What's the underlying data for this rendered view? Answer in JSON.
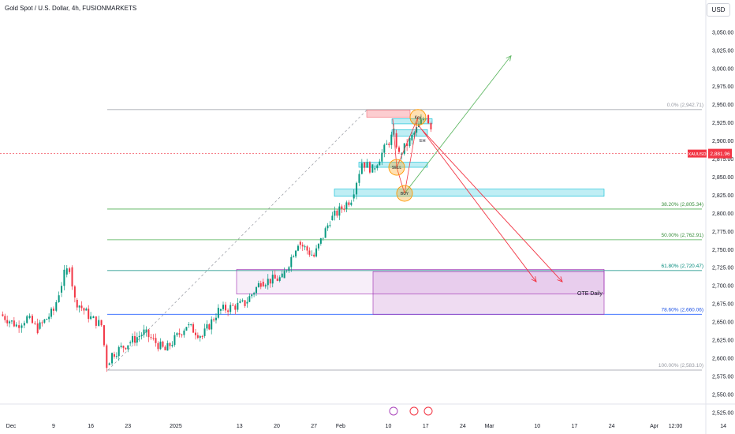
{
  "header": {
    "title": "Gold Spot / U.S. Dollar, 4h, FUSIONMARKETS",
    "currency": "USD"
  },
  "chart_data": {
    "type": "candlestick",
    "symbol": "XAUUSD",
    "timeframe": "4h",
    "last_price": {
      "label": "XAUUSD",
      "value": "2,881.96"
    },
    "y_axis": {
      "min": 2512,
      "max": 3062,
      "ticks": [
        "3,050.00",
        "3,025.00",
        "3,000.00",
        "2,975.00",
        "2,950.00",
        "2,925.00",
        "2,900.00",
        "2,875.00",
        "2,850.00",
        "2,825.00",
        "2,800.00",
        "2,775.00",
        "2,750.00",
        "2,725.00",
        "2,700.00",
        "2,675.00",
        "2,650.00",
        "2,625.00",
        "2,600.00",
        "2,575.00",
        "2,550.00",
        "2,525.00"
      ]
    },
    "x_axis": {
      "ticks": [
        {
          "label": "Dec",
          "date": "2024-12-01"
        },
        {
          "label": "9",
          "date": "2024-12-09"
        },
        {
          "label": "16",
          "date": "2024-12-16"
        },
        {
          "label": "23",
          "date": "2024-12-23"
        },
        {
          "label": "2025",
          "date": "2025-01-01"
        },
        {
          "label": "13",
          "date": "2025-01-13"
        },
        {
          "label": "20",
          "date": "2025-01-20"
        },
        {
          "label": "27",
          "date": "2025-01-27"
        },
        {
          "label": "Feb",
          "date": "2025-02-01"
        },
        {
          "label": "10",
          "date": "2025-02-10"
        },
        {
          "label": "17",
          "date": "2025-02-17"
        },
        {
          "label": "24",
          "date": "2025-02-24"
        },
        {
          "label": "Mar",
          "date": "2025-03-01"
        },
        {
          "label": "10",
          "date": "2025-03-10"
        },
        {
          "label": "17",
          "date": "2025-03-17"
        },
        {
          "label": "24",
          "date": "2025-03-24"
        },
        {
          "label": "Apr",
          "date": "2025-04-01"
        },
        {
          "label": "12:00",
          "date": "2025-04-05"
        },
        {
          "label": "14",
          "date": "2025-04-14"
        }
      ]
    },
    "price_path": [
      {
        "date": "2024-11-29",
        "price": 2660
      },
      {
        "date": "2024-12-02",
        "price": 2645
      },
      {
        "date": "2024-12-04",
        "price": 2655
      },
      {
        "date": "2024-12-06",
        "price": 2640
      },
      {
        "date": "2024-12-09",
        "price": 2665
      },
      {
        "date": "2024-12-10",
        "price": 2690
      },
      {
        "date": "2024-12-11",
        "price": 2715
      },
      {
        "date": "2024-12-12",
        "price": 2725
      },
      {
        "date": "2024-12-13",
        "price": 2680
      },
      {
        "date": "2024-12-16",
        "price": 2655
      },
      {
        "date": "2024-12-18",
        "price": 2645
      },
      {
        "date": "2024-12-19",
        "price": 2590
      },
      {
        "date": "2024-12-20",
        "price": 2605
      },
      {
        "date": "2024-12-23",
        "price": 2620
      },
      {
        "date": "2024-12-26",
        "price": 2635
      },
      {
        "date": "2024-12-30",
        "price": 2610
      },
      {
        "date": "2025-01-03",
        "price": 2645
      },
      {
        "date": "2025-01-06",
        "price": 2630
      },
      {
        "date": "2025-01-09",
        "price": 2665
      },
      {
        "date": "2025-01-14",
        "price": 2675
      },
      {
        "date": "2025-01-17",
        "price": 2705
      },
      {
        "date": "2025-01-21",
        "price": 2710
      },
      {
        "date": "2025-01-24",
        "price": 2760
      },
      {
        "date": "2025-01-27",
        "price": 2740
      },
      {
        "date": "2025-01-30",
        "price": 2790
      },
      {
        "date": "2025-02-03",
        "price": 2820
      },
      {
        "date": "2025-02-05",
        "price": 2870
      },
      {
        "date": "2025-02-07",
        "price": 2860
      },
      {
        "date": "2025-02-11",
        "price": 2910
      },
      {
        "date": "2025-02-12",
        "price": 2880
      },
      {
        "date": "2025-02-14",
        "price": 2900
      },
      {
        "date": "2025-02-17",
        "price": 2935
      },
      {
        "date": "2025-02-18",
        "price": 2920
      }
    ],
    "fibonacci": [
      {
        "label": "0.0% (2,942.71)",
        "value": 2942.71,
        "color": "#9598a1",
        "label_color": "#9598a1"
      },
      {
        "label": "38.20% (2,805.34)",
        "value": 2805.34,
        "color": "#4caf50",
        "label_color": "#388e3c"
      },
      {
        "label": "50.00% (2,762.91)",
        "value": 2762.91,
        "color": "#4caf50",
        "label_color": "#388e3c"
      },
      {
        "label": "61.80% (2,720.47)",
        "value": 2720.47,
        "color": "#00897b",
        "label_color": "#00897b"
      },
      {
        "label": "78.60% (2,660.06)",
        "value": 2660.06,
        "color": "#2962ff",
        "label_color": "#1e53e5"
      },
      {
        "label": "100.00% (2,583.10)",
        "value": 2583.1,
        "color": "#9598a1",
        "label_color": "#9598a1"
      }
    ],
    "annotations": {
      "ote_label": "OTE Daily",
      "key_label": "Key",
      "low_label": "Low",
      "sell_label": "SELL",
      "buy_label": "BUY",
      "eh_label": "EH"
    },
    "colors": {
      "up": "#089981",
      "down": "#f23645",
      "ote_box": "#9c27b0",
      "arrow_up": "#66bb6a",
      "arrow_down": "#f23645",
      "order_block": "#00bcd4",
      "circle": "#ff9800"
    }
  }
}
